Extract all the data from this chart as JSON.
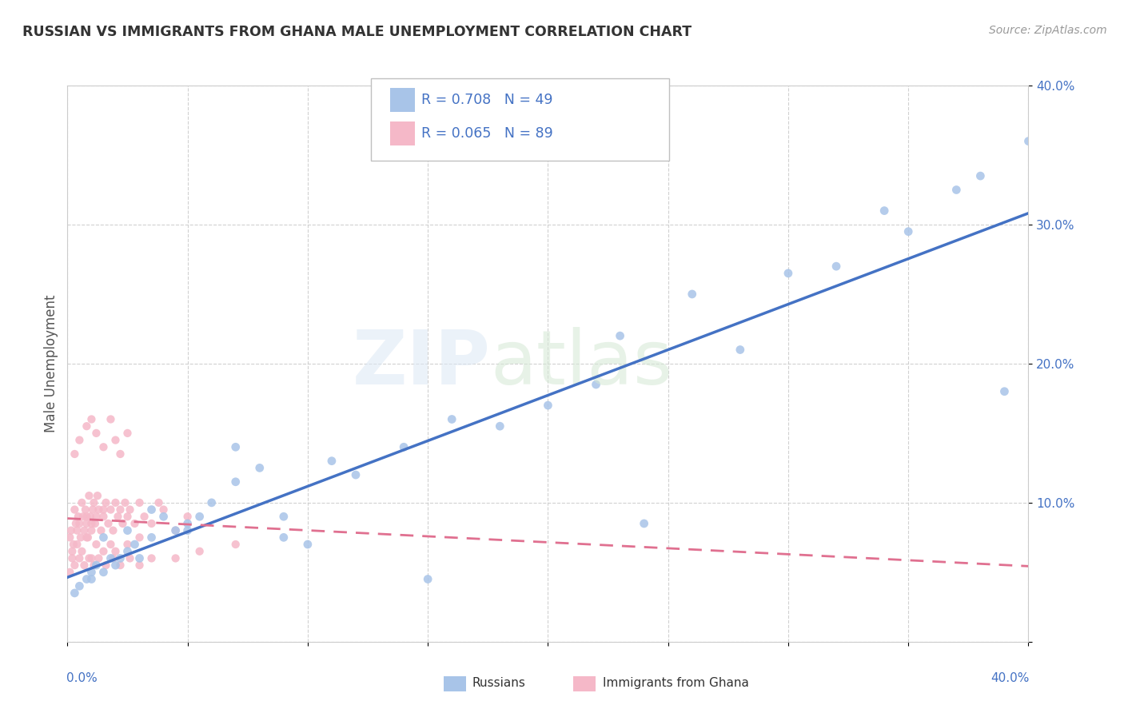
{
  "title": "RUSSIAN VS IMMIGRANTS FROM GHANA MALE UNEMPLOYMENT CORRELATION CHART",
  "source": "Source: ZipAtlas.com",
  "ylabel": "Male Unemployment",
  "legend_russians": "Russians",
  "legend_ghana": "Immigrants from Ghana",
  "blue_color": "#a8c4e8",
  "pink_color": "#f5b8c8",
  "trend_blue": "#4472c4",
  "trend_pink": "#e07090",
  "watermark_zip": "ZIP",
  "watermark_atlas": "atlas",
  "xmin": 0,
  "xmax": 40,
  "ymin": 0,
  "ymax": 40,
  "background_color": "#ffffff",
  "grid_color": "#cccccc",
  "russians_x": [
    0.3,
    0.5,
    0.8,
    1.0,
    1.2,
    1.5,
    1.8,
    2.0,
    2.2,
    2.5,
    2.8,
    3.0,
    3.5,
    4.0,
    4.5,
    5.0,
    5.5,
    6.0,
    7.0,
    8.0,
    9.0,
    10.0,
    11.0,
    12.0,
    14.0,
    15.0,
    16.0,
    18.0,
    20.0,
    22.0,
    23.0,
    24.0,
    26.0,
    28.0,
    30.0,
    32.0,
    34.0,
    35.0,
    37.0,
    38.0,
    39.0,
    40.0,
    1.0,
    1.5,
    2.5,
    3.5,
    5.0,
    7.0,
    9.0
  ],
  "russians_y": [
    3.5,
    4.0,
    4.5,
    5.0,
    5.5,
    5.0,
    6.0,
    5.5,
    6.0,
    6.5,
    7.0,
    6.0,
    7.5,
    9.0,
    8.0,
    8.5,
    9.0,
    10.0,
    11.5,
    12.5,
    7.5,
    7.0,
    13.0,
    12.0,
    14.0,
    4.5,
    16.0,
    15.5,
    17.0,
    18.5,
    22.0,
    8.5,
    25.0,
    21.0,
    26.5,
    27.0,
    31.0,
    29.5,
    32.5,
    33.5,
    18.0,
    36.0,
    4.5,
    7.5,
    8.0,
    9.5,
    8.0,
    14.0,
    9.0
  ],
  "ghana_x": [
    0.1,
    0.15,
    0.2,
    0.25,
    0.3,
    0.35,
    0.4,
    0.45,
    0.5,
    0.55,
    0.6,
    0.65,
    0.7,
    0.75,
    0.8,
    0.85,
    0.9,
    0.95,
    1.0,
    1.05,
    1.1,
    1.15,
    1.2,
    1.25,
    1.3,
    1.4,
    1.5,
    1.6,
    1.7,
    1.8,
    1.9,
    2.0,
    2.1,
    2.2,
    2.3,
    2.4,
    2.5,
    2.6,
    2.8,
    3.0,
    3.2,
    3.5,
    3.8,
    4.0,
    4.5,
    5.0,
    0.3,
    0.5,
    0.8,
    1.0,
    1.2,
    1.5,
    1.8,
    2.0,
    2.2,
    2.5,
    0.2,
    0.4,
    0.6,
    0.8,
    1.0,
    1.2,
    1.5,
    1.8,
    2.0,
    2.5,
    3.0,
    0.1,
    0.3,
    0.5,
    0.7,
    0.9,
    1.1,
    1.3,
    1.6,
    1.9,
    2.2,
    2.6,
    3.0,
    3.5,
    4.5,
    5.5,
    7.0,
    0.8,
    1.0,
    1.5
  ],
  "ghana_y": [
    7.5,
    8.0,
    6.5,
    7.0,
    9.5,
    8.5,
    8.0,
    9.0,
    8.5,
    7.5,
    10.0,
    9.0,
    8.0,
    9.5,
    8.5,
    7.5,
    10.5,
    9.0,
    8.0,
    9.5,
    10.0,
    8.5,
    9.0,
    10.5,
    9.5,
    8.0,
    9.0,
    10.0,
    8.5,
    9.5,
    8.0,
    10.0,
    9.0,
    9.5,
    8.5,
    10.0,
    9.0,
    9.5,
    8.5,
    10.0,
    9.0,
    8.5,
    10.0,
    9.5,
    8.0,
    9.0,
    13.5,
    14.5,
    15.5,
    16.0,
    15.0,
    14.0,
    16.0,
    14.5,
    13.5,
    15.0,
    6.0,
    7.0,
    6.5,
    7.5,
    6.0,
    7.0,
    6.5,
    7.0,
    6.5,
    7.0,
    7.5,
    5.0,
    5.5,
    6.0,
    5.5,
    6.0,
    5.5,
    6.0,
    5.5,
    6.0,
    5.5,
    6.0,
    5.5,
    6.0,
    6.0,
    6.5,
    7.0,
    9.0,
    8.5,
    9.5
  ],
  "ytick_positions": [
    0,
    10,
    20,
    30,
    40
  ],
  "ytick_labels": [
    "",
    "10.0%",
    "20.0%",
    "30.0%",
    "40.0%"
  ]
}
